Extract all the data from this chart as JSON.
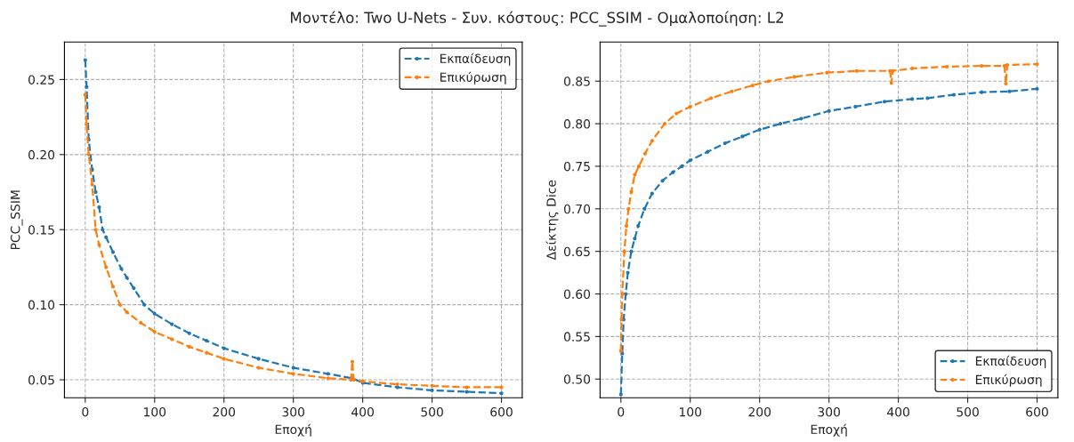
{
  "chart_data": [
    {
      "type": "line",
      "title": "Μοντέλο: Two U-Nets - Συν. κόστους: PCC_SSIM - Ομαλοποίηση: L2",
      "xlabel": "Εποχή",
      "ylabel": "PCC_SSIM",
      "xlim": [
        -30,
        630
      ],
      "ylim": [
        0.038,
        0.275
      ],
      "xticks": [
        0,
        100,
        200,
        300,
        400,
        500,
        600
      ],
      "yticks": [
        0.05,
        {
          "value": 0.1,
          "label": "0.10"
        },
        0.15,
        {
          "value": 0.2,
          "label": "0.20"
        },
        0.25
      ],
      "grid": true,
      "legend": "top right",
      "marker": "circle",
      "line_style": "dashed",
      "series": [
        {
          "name": "Εκπαίδευση",
          "color": "#1f77b4",
          "x": [
            0,
            2,
            5,
            10,
            15,
            20,
            25,
            30,
            40,
            52,
            60,
            70,
            85,
            100,
            125,
            150,
            175,
            200,
            250,
            300,
            350,
            385,
            400,
            450,
            500,
            550,
            600
          ],
          "values": [
            0.263,
            0.245,
            0.21,
            0.19,
            0.175,
            0.165,
            0.15,
            0.145,
            0.135,
            0.124,
            0.118,
            0.111,
            0.1,
            0.094,
            0.087,
            0.081,
            0.076,
            0.071,
            0.064,
            0.058,
            0.054,
            0.051,
            0.048,
            0.045,
            0.043,
            0.042,
            0.041
          ]
        },
        {
          "name": "Επικύρωση",
          "color": "#ff7f0e",
          "x": [
            0,
            2,
            5,
            10,
            15,
            20,
            30,
            40,
            50,
            60,
            80,
            100,
            125,
            150,
            175,
            200,
            250,
            300,
            350,
            383,
            385,
            387,
            400,
            450,
            500,
            550,
            600
          ],
          "values": [
            0.24,
            0.22,
            0.2,
            0.18,
            0.15,
            0.14,
            0.125,
            0.112,
            0.1,
            0.095,
            0.088,
            0.082,
            0.077,
            0.072,
            0.068,
            0.064,
            0.058,
            0.054,
            0.051,
            0.05,
            0.062,
            0.05,
            0.049,
            0.047,
            0.046,
            0.045,
            0.045
          ]
        }
      ]
    },
    {
      "type": "line",
      "xlabel": "Εποχή",
      "ylabel": "Δείκτης Dice",
      "xlim": [
        -30,
        630
      ],
      "ylim": [
        0.478,
        0.896
      ],
      "xticks": [
        0,
        100,
        200,
        300,
        400,
        500,
        600
      ],
      "yticks": [
        {
          "value": 0.5,
          "label": "0.50"
        },
        0.55,
        {
          "value": 0.6,
          "label": "0.60"
        },
        0.65,
        {
          "value": 0.7,
          "label": "0.70"
        },
        0.75,
        {
          "value": 0.8,
          "label": "0.80"
        },
        0.85
      ],
      "grid": true,
      "legend": "bottom right",
      "marker": "circle",
      "line_style": "dashed",
      "series": [
        {
          "name": "Εκπαίδευση",
          "color": "#1f77b4",
          "x": [
            0,
            2,
            4,
            7,
            10,
            15,
            20,
            25,
            34,
            45,
            60,
            75,
            88,
            100,
            125,
            150,
            175,
            200,
            230,
            260,
            300,
            338,
            380,
            420,
            442,
            480,
            520,
            560,
            600
          ],
          "values": [
            0.482,
            0.53,
            0.57,
            0.6,
            0.625,
            0.65,
            0.665,
            0.68,
            0.7,
            0.718,
            0.733,
            0.743,
            0.75,
            0.757,
            0.767,
            0.777,
            0.785,
            0.793,
            0.8,
            0.806,
            0.815,
            0.82,
            0.826,
            0.829,
            0.83,
            0.834,
            0.837,
            0.838,
            0.841
          ]
        },
        {
          "name": "Επικύρωση",
          "color": "#ff7f0e",
          "x": [
            0,
            1,
            2,
            5,
            8,
            11,
            15,
            20,
            26,
            35,
            45,
            63,
            80,
            100,
            130,
            160,
            190,
            213,
            250,
            297,
            340,
            388,
            390,
            392,
            420,
            470,
            520,
            553,
            555,
            557,
            600
          ],
          "values": [
            0.533,
            0.57,
            0.6,
            0.65,
            0.68,
            0.7,
            0.72,
            0.74,
            0.75,
            0.765,
            0.78,
            0.8,
            0.812,
            0.82,
            0.83,
            0.838,
            0.845,
            0.85,
            0.855,
            0.86,
            0.862,
            0.862,
            0.848,
            0.862,
            0.865,
            0.867,
            0.868,
            0.868,
            0.847,
            0.869,
            0.87
          ]
        }
      ]
    }
  ]
}
